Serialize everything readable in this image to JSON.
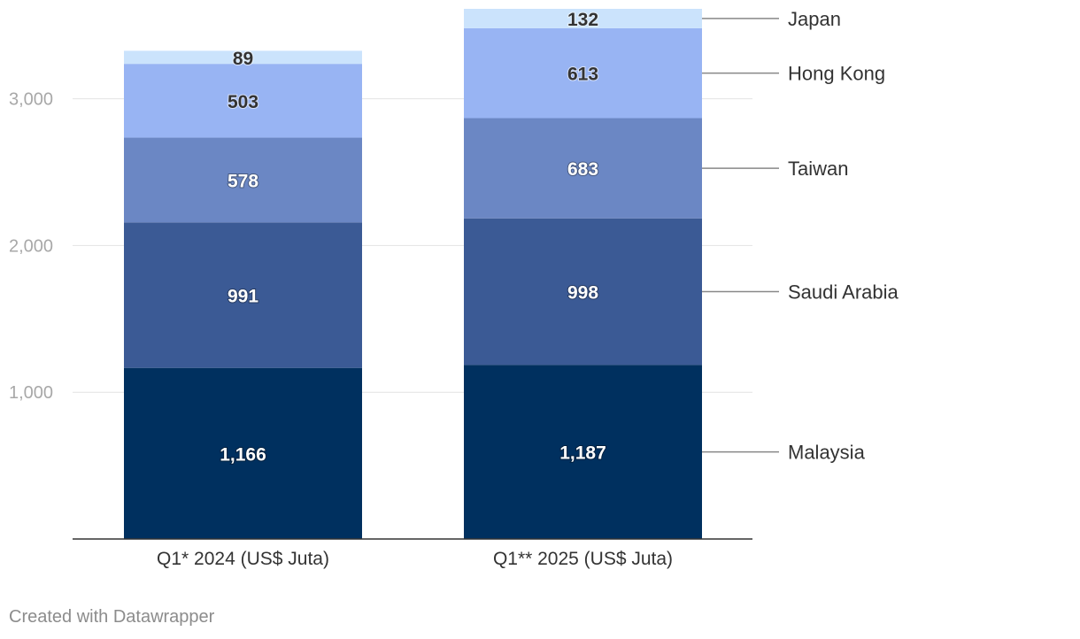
{
  "chart_data": {
    "type": "bar",
    "stacked": true,
    "categories": [
      "Q1* 2024 (US$ Juta)",
      "Q1** 2025 (US$ Juta)"
    ],
    "series": [
      {
        "name": "Malaysia",
        "values": [
          1166,
          1187
        ],
        "color": "#00305f"
      },
      {
        "name": "Saudi Arabia",
        "values": [
          991,
          998
        ],
        "color": "#3b5a95"
      },
      {
        "name": "Taiwan",
        "values": [
          578,
          683
        ],
        "color": "#6b87c4"
      },
      {
        "name": "Hong Kong",
        "values": [
          503,
          613
        ],
        "color": "#98b4f3"
      },
      {
        "name": "Japan",
        "values": [
          89,
          132
        ],
        "color": "#cbe3fc"
      }
    ],
    "value_labels": [
      [
        "1,166",
        "1,187"
      ],
      [
        "991",
        "998"
      ],
      [
        "578",
        "683"
      ],
      [
        "503",
        "613"
      ],
      [
        "89",
        "132"
      ]
    ],
    "y_ticks": [
      1000,
      2000,
      3000
    ],
    "y_tick_labels": [
      "1,000",
      "2,000",
      "3,000"
    ],
    "ylim": [
      0,
      3600
    ],
    "grid": true,
    "legend": "right, direct labels"
  },
  "footer": {
    "credit": "Created with Datawrapper"
  }
}
